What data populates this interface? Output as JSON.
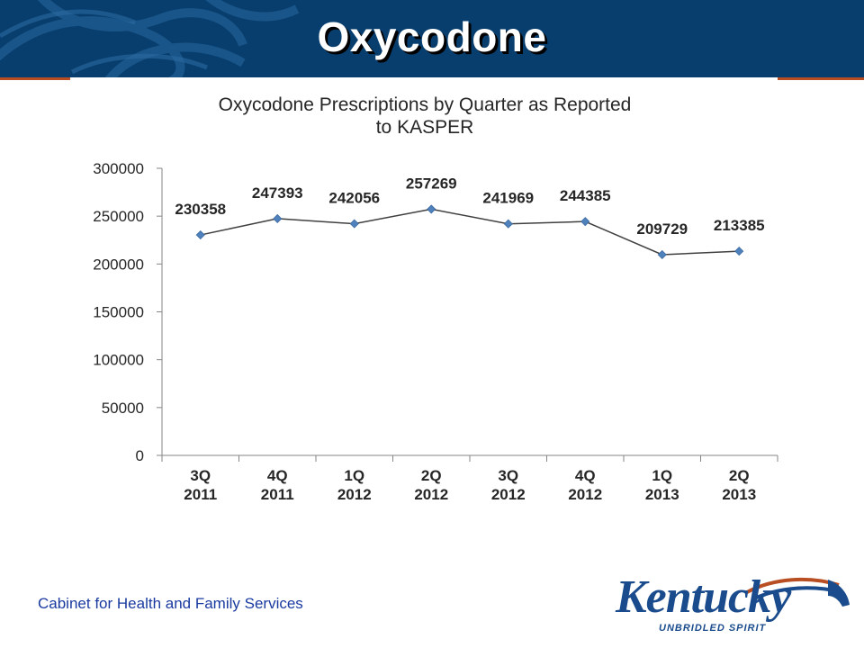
{
  "header": {
    "title": "Oxycodone"
  },
  "footer": {
    "text": "Cabinet for Health and Family Services"
  },
  "logo": {
    "name": "Kentucky",
    "tagline": "UNBRIDLED SPIRIT"
  },
  "colors": {
    "banner": "#083e6e",
    "accent_rule": "#b84e22",
    "series": "#4f81bd",
    "line": "#404040",
    "footer_text": "#1a3aa0"
  },
  "chart_data": {
    "type": "line",
    "title_lines": [
      "Oxycodone Prescriptions by Quarter as Reported",
      "to KASPER"
    ],
    "categories": [
      [
        "3Q",
        "2011"
      ],
      [
        "4Q",
        "2011"
      ],
      [
        "1Q",
        "2012"
      ],
      [
        "2Q",
        "2012"
      ],
      [
        "3Q",
        "2012"
      ],
      [
        "4Q",
        "2012"
      ],
      [
        "1Q",
        "2013"
      ],
      [
        "2Q",
        "2013"
      ]
    ],
    "values": [
      230358,
      247393,
      242056,
      257269,
      241969,
      244385,
      209729,
      213385
    ],
    "ylim": [
      0,
      300000
    ],
    "yticks": [
      0,
      50000,
      100000,
      150000,
      200000,
      250000,
      300000
    ],
    "grid": false,
    "legend": "none"
  }
}
